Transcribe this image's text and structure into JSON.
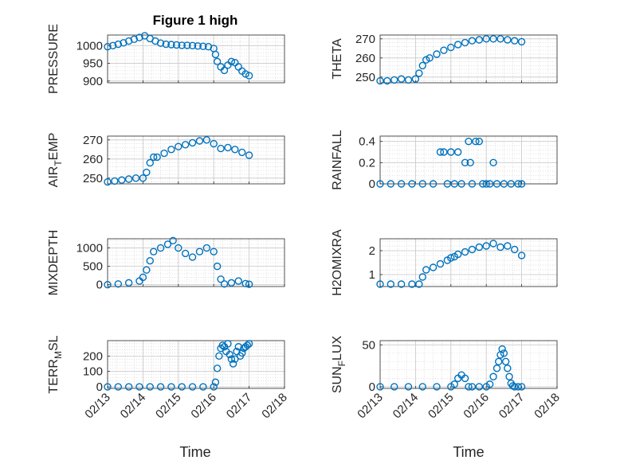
{
  "figure": {
    "title": "Figure 1 high",
    "xlabel": "Time",
    "xticklabels": [
      "02/13",
      "02/14",
      "02/15",
      "02/16",
      "02/17",
      "02/18"
    ],
    "marker_color": "#0072BD"
  },
  "chart_data": [
    {
      "type": "scatter",
      "ylabel": "PRESSURE",
      "ylim": [
        895,
        1030
      ],
      "yticks": [
        900,
        950,
        1000
      ],
      "xlim": [
        0,
        5
      ],
      "grid": true,
      "x": [
        0.0,
        0.15,
        0.3,
        0.45,
        0.6,
        0.75,
        0.9,
        1.05,
        1.2,
        1.35,
        1.5,
        1.65,
        1.8,
        1.95,
        2.1,
        2.25,
        2.4,
        2.55,
        2.7,
        2.85,
        3.0,
        3.05,
        3.1,
        3.2,
        3.3,
        3.4,
        3.5,
        3.6,
        3.7,
        3.8,
        3.9,
        4.0
      ],
      "y": [
        997,
        1000,
        1004,
        1008,
        1013,
        1018,
        1023,
        1028,
        1020,
        1013,
        1007,
        1004,
        1003,
        1002,
        1001,
        1001,
        1000,
        999,
        998,
        997,
        992,
        975,
        955,
        940,
        930,
        945,
        955,
        952,
        940,
        928,
        920,
        915
      ]
    },
    {
      "type": "scatter",
      "ylabel": "THETA",
      "ylim": [
        247,
        272
      ],
      "yticks": [
        250,
        260,
        270
      ],
      "xlim": [
        0,
        5
      ],
      "grid": true,
      "x": [
        0.0,
        0.2,
        0.4,
        0.6,
        0.8,
        1.0,
        1.1,
        1.2,
        1.3,
        1.4,
        1.6,
        1.8,
        2.0,
        2.2,
        2.4,
        2.6,
        2.8,
        3.0,
        3.2,
        3.4,
        3.6,
        3.8,
        4.0
      ],
      "y": [
        248,
        248,
        248.5,
        249,
        248.5,
        249,
        252,
        256,
        259,
        260,
        262,
        264,
        265.5,
        267,
        268,
        269,
        269.5,
        270,
        270,
        270,
        269.5,
        269,
        268.5
      ]
    },
    {
      "type": "scatter",
      "ylabel": "AIR_TEMP",
      "ylim": [
        247,
        272
      ],
      "yticks": [
        250,
        260,
        270
      ],
      "xlim": [
        0,
        5
      ],
      "grid": true,
      "x": [
        0.0,
        0.2,
        0.4,
        0.6,
        0.8,
        1.0,
        1.1,
        1.2,
        1.3,
        1.4,
        1.6,
        1.8,
        2.0,
        2.2,
        2.4,
        2.6,
        2.8,
        3.0,
        3.2,
        3.4,
        3.6,
        3.8,
        4.0
      ],
      "y": [
        248,
        248.5,
        249,
        249.5,
        250,
        250,
        253,
        258,
        261,
        261,
        263,
        265,
        266.5,
        267.5,
        268.5,
        269.5,
        270,
        268,
        265.5,
        266,
        265,
        263.5,
        262
      ]
    },
    {
      "type": "scatter",
      "ylabel": "RAINFALL",
      "ylim": [
        0,
        0.45
      ],
      "yticks": [
        0,
        0.2,
        0.4
      ],
      "xlim": [
        0,
        5
      ],
      "grid": true,
      "x": [
        0.0,
        0.3,
        0.6,
        0.9,
        1.2,
        1.5,
        1.7,
        1.8,
        1.9,
        2.0,
        2.1,
        2.2,
        2.3,
        2.4,
        2.5,
        2.55,
        2.6,
        2.7,
        2.8,
        2.9,
        3.0,
        3.1,
        3.2,
        3.3,
        3.5,
        3.7,
        3.9,
        4.0
      ],
      "y": [
        0,
        0,
        0,
        0,
        0,
        0,
        0.3,
        0.3,
        0,
        0.3,
        0,
        0.3,
        0,
        0.2,
        0.4,
        0.2,
        0,
        0.4,
        0.4,
        0,
        0,
        0,
        0.2,
        0,
        0,
        0,
        0,
        0
      ]
    },
    {
      "type": "scatter",
      "ylabel": "MIXDEPTH",
      "ylim": [
        -50,
        1250
      ],
      "yticks": [
        0,
        500,
        1000
      ],
      "xlim": [
        0,
        5
      ],
      "grid": true,
      "x": [
        0.0,
        0.3,
        0.6,
        0.9,
        1.0,
        1.1,
        1.2,
        1.3,
        1.5,
        1.7,
        1.85,
        2.0,
        2.2,
        2.4,
        2.6,
        2.8,
        3.0,
        3.1,
        3.2,
        3.3,
        3.5,
        3.7,
        3.9,
        4.0
      ],
      "y": [
        0,
        20,
        50,
        100,
        200,
        400,
        650,
        900,
        1000,
        1100,
        1200,
        1000,
        850,
        750,
        900,
        1000,
        900,
        500,
        150,
        20,
        50,
        100,
        30,
        10
      ]
    },
    {
      "type": "scatter",
      "ylabel": "H2OMIXRA",
      "ylim": [
        0.5,
        2.5
      ],
      "yticks": [
        1,
        2
      ],
      "xlim": [
        0,
        5
      ],
      "grid": true,
      "x": [
        0.0,
        0.3,
        0.6,
        0.9,
        1.1,
        1.2,
        1.3,
        1.5,
        1.7,
        1.9,
        2.0,
        2.1,
        2.2,
        2.4,
        2.6,
        2.8,
        3.0,
        3.2,
        3.4,
        3.6,
        3.8,
        4.0
      ],
      "y": [
        0.6,
        0.6,
        0.6,
        0.6,
        0.6,
        0.9,
        1.2,
        1.3,
        1.45,
        1.6,
        1.7,
        1.75,
        1.85,
        1.95,
        2.05,
        2.15,
        2.2,
        2.3,
        2.15,
        2.2,
        2.05,
        1.8
      ]
    },
    {
      "type": "scatter",
      "ylabel": "TERR_MSL",
      "ylim": [
        -10,
        300
      ],
      "yticks": [
        0,
        100,
        200
      ],
      "xlim": [
        0,
        5
      ],
      "grid": true,
      "x": [
        0.0,
        0.3,
        0.6,
        0.9,
        1.2,
        1.5,
        1.8,
        2.1,
        2.4,
        2.7,
        3.0,
        3.05,
        3.1,
        3.15,
        3.2,
        3.25,
        3.3,
        3.35,
        3.4,
        3.45,
        3.5,
        3.55,
        3.6,
        3.65,
        3.7,
        3.75,
        3.8,
        3.85,
        3.9,
        3.95,
        4.0
      ],
      "y": [
        0,
        0,
        0,
        0,
        0,
        0,
        0,
        0,
        0,
        0,
        0,
        30,
        120,
        200,
        250,
        270,
        260,
        230,
        280,
        210,
        180,
        150,
        180,
        230,
        260,
        200,
        220,
        250,
        260,
        270,
        280
      ]
    },
    {
      "type": "scatter",
      "ylabel": "SUN_FLUX",
      "ylim": [
        -2,
        55
      ],
      "yticks": [
        0,
        50
      ],
      "xlim": [
        0,
        5
      ],
      "grid": true,
      "x": [
        0.0,
        0.4,
        0.8,
        1.2,
        1.6,
        2.0,
        2.1,
        2.2,
        2.3,
        2.4,
        2.5,
        2.6,
        2.8,
        3.0,
        3.1,
        3.2,
        3.3,
        3.35,
        3.4,
        3.45,
        3.5,
        3.55,
        3.6,
        3.65,
        3.7,
        3.75,
        3.8,
        3.9,
        4.0
      ],
      "y": [
        0,
        0,
        0,
        0,
        0,
        0,
        3,
        10,
        14,
        10,
        0,
        0,
        0,
        0,
        3,
        12,
        22,
        30,
        38,
        45,
        40,
        30,
        22,
        12,
        4,
        1,
        0,
        0,
        0
      ]
    }
  ]
}
